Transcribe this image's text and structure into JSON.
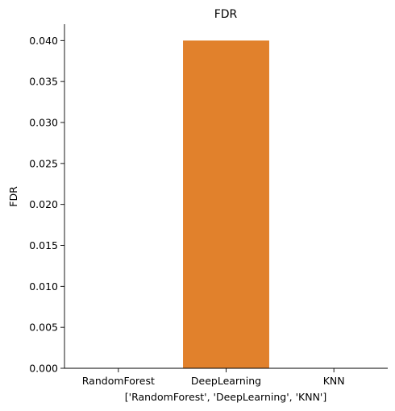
{
  "chart_data": {
    "type": "bar",
    "title": "FDR",
    "xlabel": "['RandomForest', 'DeepLearning', 'KNN']",
    "ylabel": "FDR",
    "categories": [
      "RandomForest",
      "DeepLearning",
      "KNN"
    ],
    "values": [
      0.0,
      0.04,
      0.0
    ],
    "ylim": [
      0,
      0.042
    ],
    "yticks": [
      "0.000",
      "0.005",
      "0.010",
      "0.015",
      "0.020",
      "0.025",
      "0.030",
      "0.035",
      "0.040"
    ],
    "grid": false,
    "legend": "none",
    "colors": [
      "#1f77b4",
      "#e1812c",
      "#3a923a"
    ]
  }
}
